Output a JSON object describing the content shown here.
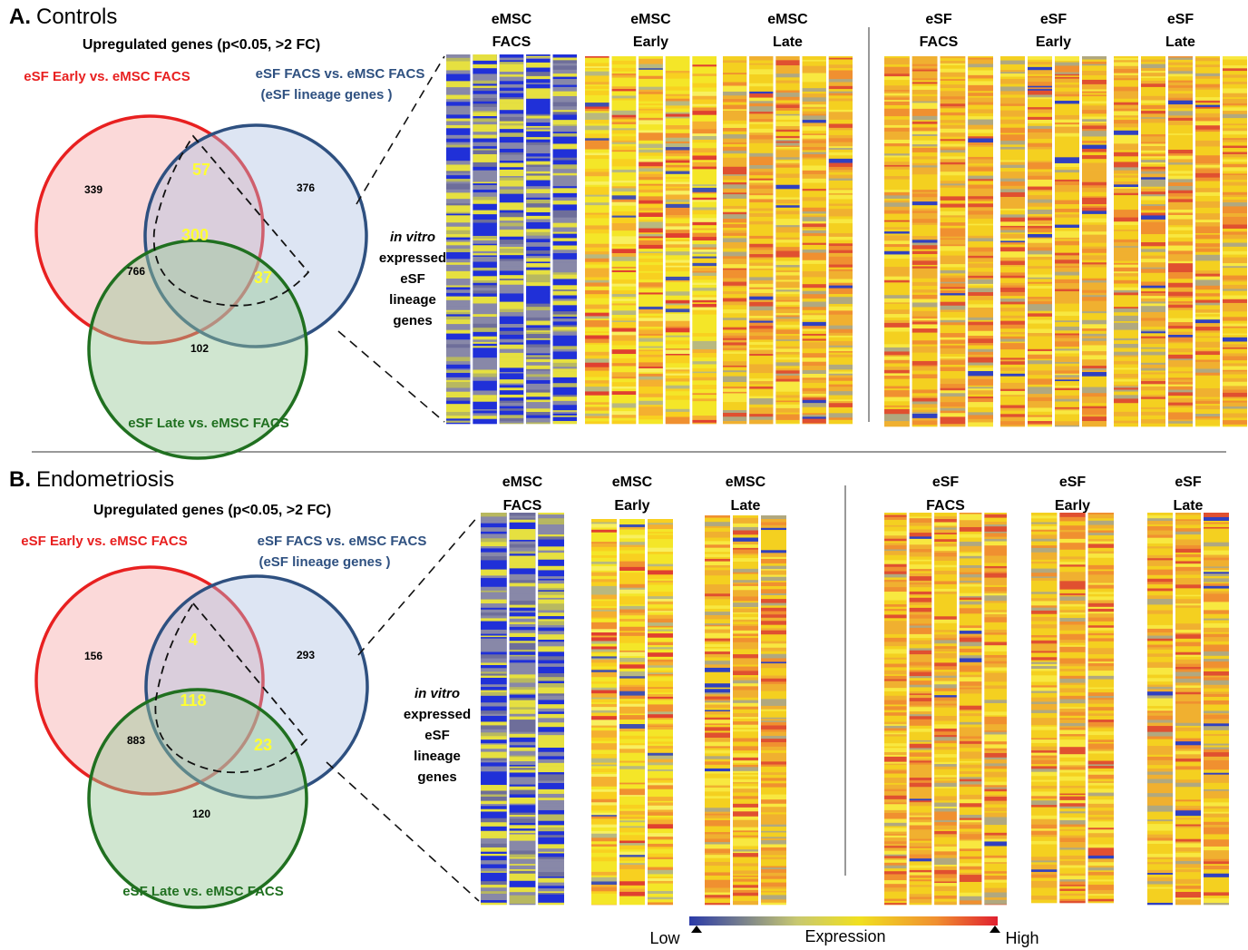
{
  "panels": [
    {
      "label": "A.",
      "title": "Controls",
      "subtitle": "Upregulated genes (p<0.05, >2 FC)",
      "set_labels": {
        "early": "eSF Early vs. eMSC FACS",
        "facs": "eSF FACS vs. eMSC FACS",
        "facs_note": "(eSF lineage genes )",
        "late": "eSF Late vs. eMSC FACS"
      },
      "counts": [
        339,
        376,
        766,
        57,
        300,
        37,
        102
      ],
      "side_label": [
        "in vitro",
        "expressed",
        "eSF",
        "lineage",
        "genes"
      ],
      "heatmaps": [
        [
          "eMSC",
          "FACS"
        ],
        [
          "eMSC",
          "Early"
        ],
        [
          "eMSC",
          "Late"
        ],
        [
          "eSF",
          "FACS"
        ],
        [
          "eSF",
          "Early"
        ],
        [
          "eSF",
          "Late"
        ]
      ]
    },
    {
      "label": "B.",
      "title": "Endometriosis",
      "subtitle": "Upregulated genes (p<0.05, >2 FC)",
      "set_labels": {
        "early": "eSF Early vs. eMSC FACS",
        "facs": "eSF FACS vs. eMSC FACS",
        "facs_note": "(eSF lineage genes )",
        "late": "eSF Late vs. eMSC FACS"
      },
      "counts": [
        156,
        293,
        883,
        4,
        118,
        23,
        120
      ],
      "side_label": [
        "in vitro",
        "expressed",
        "eSF",
        "lineage",
        "genes"
      ],
      "heatmaps": [
        [
          "eMSC",
          "FACS"
        ],
        [
          "eMSC",
          "Early"
        ],
        [
          "eMSC",
          "Late"
        ],
        [
          "eSF",
          "FACS"
        ],
        [
          "eSF",
          "Early"
        ],
        [
          "eSF",
          "Late"
        ]
      ]
    }
  ],
  "legend": {
    "low": "Low",
    "title": "Expression",
    "high": "High"
  }
}
